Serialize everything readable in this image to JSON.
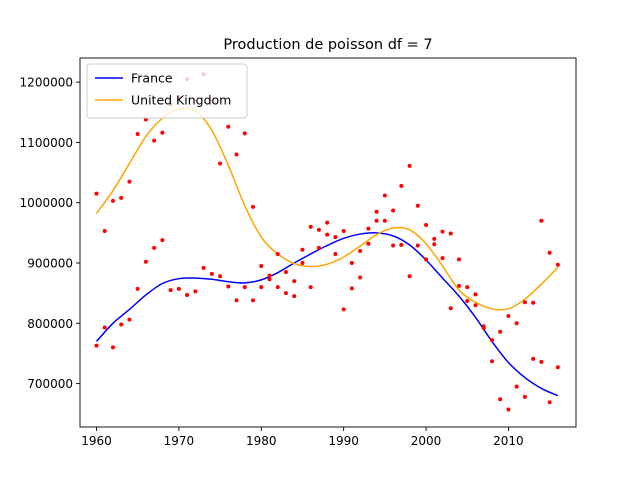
{
  "chart_data": {
    "type": "scatter",
    "title": "Production de poisson df = 7",
    "xlabel": "",
    "ylabel": "",
    "xlim": [
      1958.0,
      2018.2
    ],
    "ylim": [
      628000,
      1240000
    ],
    "x_ticks": [
      1960,
      1970,
      1980,
      1990,
      2000,
      2010
    ],
    "x_tick_labels": [
      "1960",
      "1970",
      "1980",
      "1990",
      "2000",
      "2010"
    ],
    "y_ticks": [
      700000,
      800000,
      900000,
      1000000,
      1100000,
      1200000
    ],
    "y_tick_labels": [
      "700000",
      "800000",
      "900000",
      "1000000",
      "1100000",
      "1200000"
    ],
    "grid": false,
    "legend_position": "top-left",
    "series": [
      {
        "name": "France",
        "kind": "line",
        "color": "#0000ff",
        "x": [
          1960,
          1962,
          1964,
          1966,
          1968,
          1970,
          1972,
          1974,
          1976,
          1978,
          1980,
          1982,
          1984,
          1986,
          1988,
          1990,
          1992,
          1994,
          1996,
          1998,
          2000,
          2002,
          2004,
          2006,
          2008,
          2010,
          2012,
          2014,
          2016
        ],
        "y": [
          770000,
          800000,
          823000,
          847000,
          866000,
          874000,
          875000,
          873000,
          869000,
          867000,
          872000,
          884000,
          900000,
          915000,
          929000,
          941000,
          948000,
          950000,
          945000,
          930000,
          905000,
          875000,
          845000,
          810000,
          770000,
          735000,
          710000,
          692000,
          680000
        ]
      },
      {
        "name": "United Kingdom",
        "kind": "line",
        "color": "#ffa500",
        "x": [
          1960,
          1962,
          1964,
          1966,
          1968,
          1970,
          1972,
          1974,
          1976,
          1978,
          1980,
          1982,
          1984,
          1986,
          1988,
          1990,
          1992,
          1994,
          1996,
          1998,
          2000,
          2002,
          2004,
          2006,
          2008,
          2010,
          2012,
          2014,
          2016
        ],
        "y": [
          982000,
          1020000,
          1065000,
          1110000,
          1140000,
          1155000,
          1152000,
          1120000,
          1062000,
          995000,
          943000,
          915000,
          899000,
          894000,
          898000,
          910000,
          928000,
          947000,
          958000,
          955000,
          932000,
          895000,
          855000,
          835000,
          824000,
          824000,
          840000,
          865000,
          893000
        ]
      },
      {
        "name": "",
        "kind": "points",
        "color": "#ff0000",
        "x": [
          1960,
          1961,
          1962,
          1963,
          1964,
          1965,
          1966,
          1967,
          1968,
          1969,
          1970,
          1971,
          1972,
          1973,
          1974,
          1975,
          1976,
          1977,
          1978,
          1979,
          1980,
          1981,
          1982,
          1983,
          1984,
          1985,
          1986,
          1987,
          1988,
          1989,
          1990,
          1991,
          1992,
          1993,
          1994,
          1995,
          1996,
          1997,
          1998,
          1999,
          2000,
          2001,
          2002,
          2003,
          2004,
          2005,
          2006,
          2007,
          2008,
          2009,
          2010,
          2011,
          2012,
          2013,
          2014,
          2015,
          2016,
          1960,
          1961,
          1962,
          1963,
          1964,
          1965,
          1966,
          1967,
          1968,
          1969,
          1970,
          1971,
          1972,
          1973,
          1974,
          1975,
          1976,
          1977,
          1978,
          1979,
          1980,
          1981,
          1982,
          1983,
          1984,
          1985,
          1986,
          1987,
          1988,
          1989,
          1990,
          1991,
          1992,
          1993,
          1994,
          1995,
          1996,
          1997,
          1998,
          1999,
          2000,
          2001,
          2002,
          2003,
          2004,
          2005,
          2006,
          2007,
          2008,
          2009,
          2010,
          2011,
          2012,
          2013,
          2014,
          2015,
          2016
        ],
        "y": [
          1015000,
          953000,
          1003000,
          1008000,
          1035000,
          1114000,
          1138000,
          1103000,
          1116000,
          1163000,
          1175000,
          1205000,
          1170000,
          1213000,
          1168000,
          1065000,
          1126000,
          1080000,
          1115000,
          993000,
          895000,
          879000,
          915000,
          885000,
          845000,
          922000,
          960000,
          955000,
          967000,
          943000,
          823000,
          858000,
          876000,
          957000,
          985000,
          1012000,
          987000,
          1028000,
          1061000,
          995000,
          963000,
          940000,
          952000,
          949000,
          906000,
          860000,
          848000,
          795000,
          737000,
          786000,
          812000,
          695000,
          835000,
          834000,
          970000,
          917000,
          897000,
          763000,
          793000,
          760000,
          798000,
          806000,
          857000,
          902000,
          925000,
          938000,
          855000,
          857000,
          847000,
          853000,
          892000,
          882000,
          878000,
          861000,
          838000,
          860000,
          838000,
          860000,
          873000,
          860000,
          850000,
          870000,
          900000,
          860000,
          925000,
          947000,
          915000,
          953000,
          900000,
          920000,
          932000,
          970000,
          970000,
          929000,
          930000,
          878000,
          929000,
          906000,
          931000,
          908000,
          825000,
          862000,
          837000,
          830000,
          792000,
          772000,
          674000,
          657000,
          800000,
          678000,
          741000,
          736000,
          669000,
          727000
        ]
      }
    ],
    "legend": [
      {
        "label": "France",
        "color": "#0000ff"
      },
      {
        "label": "United Kingdom",
        "color": "#ffa500"
      }
    ]
  }
}
